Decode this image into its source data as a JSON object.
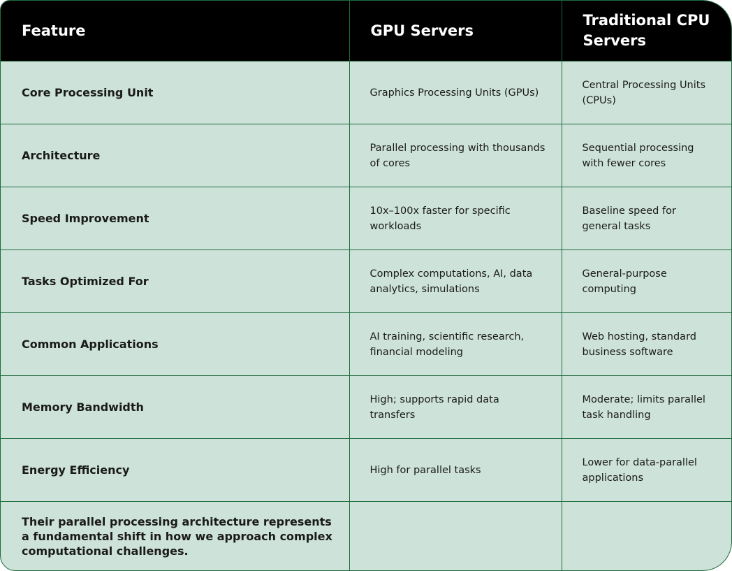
{
  "table": {
    "header": [
      "Feature",
      "GPU Servers",
      "Traditional CPU Servers"
    ],
    "rows": [
      [
        "Core Processing Unit",
        "Graphics Processing Units (GPUs)",
        "Central Processing Units (CPUs)"
      ],
      [
        "Architecture",
        "Parallel processing with thousands of cores",
        "Sequential processing with fewer cores"
      ],
      [
        "Speed Improvement",
        "10x–100x faster for specific workloads",
        "Baseline speed for general tasks"
      ],
      [
        "Tasks Optimized For",
        "Complex computations, AI, data analytics, simulations",
        "General-purpose computing"
      ],
      [
        "Common Applications",
        "AI training, scientific research, financial modeling",
        "Web hosting, standard business software"
      ],
      [
        "Memory Bandwidth",
        "High; supports rapid data transfers",
        "Moderate; limits parallel task handling"
      ],
      [
        "Energy Efficiency",
        "High for parallel tasks",
        "Lower for data-parallel applications"
      ],
      [
        "Their parallel processing architecture represents a fundamental shift in how we approach complex computational challenges."
      ]
    ]
  }
}
